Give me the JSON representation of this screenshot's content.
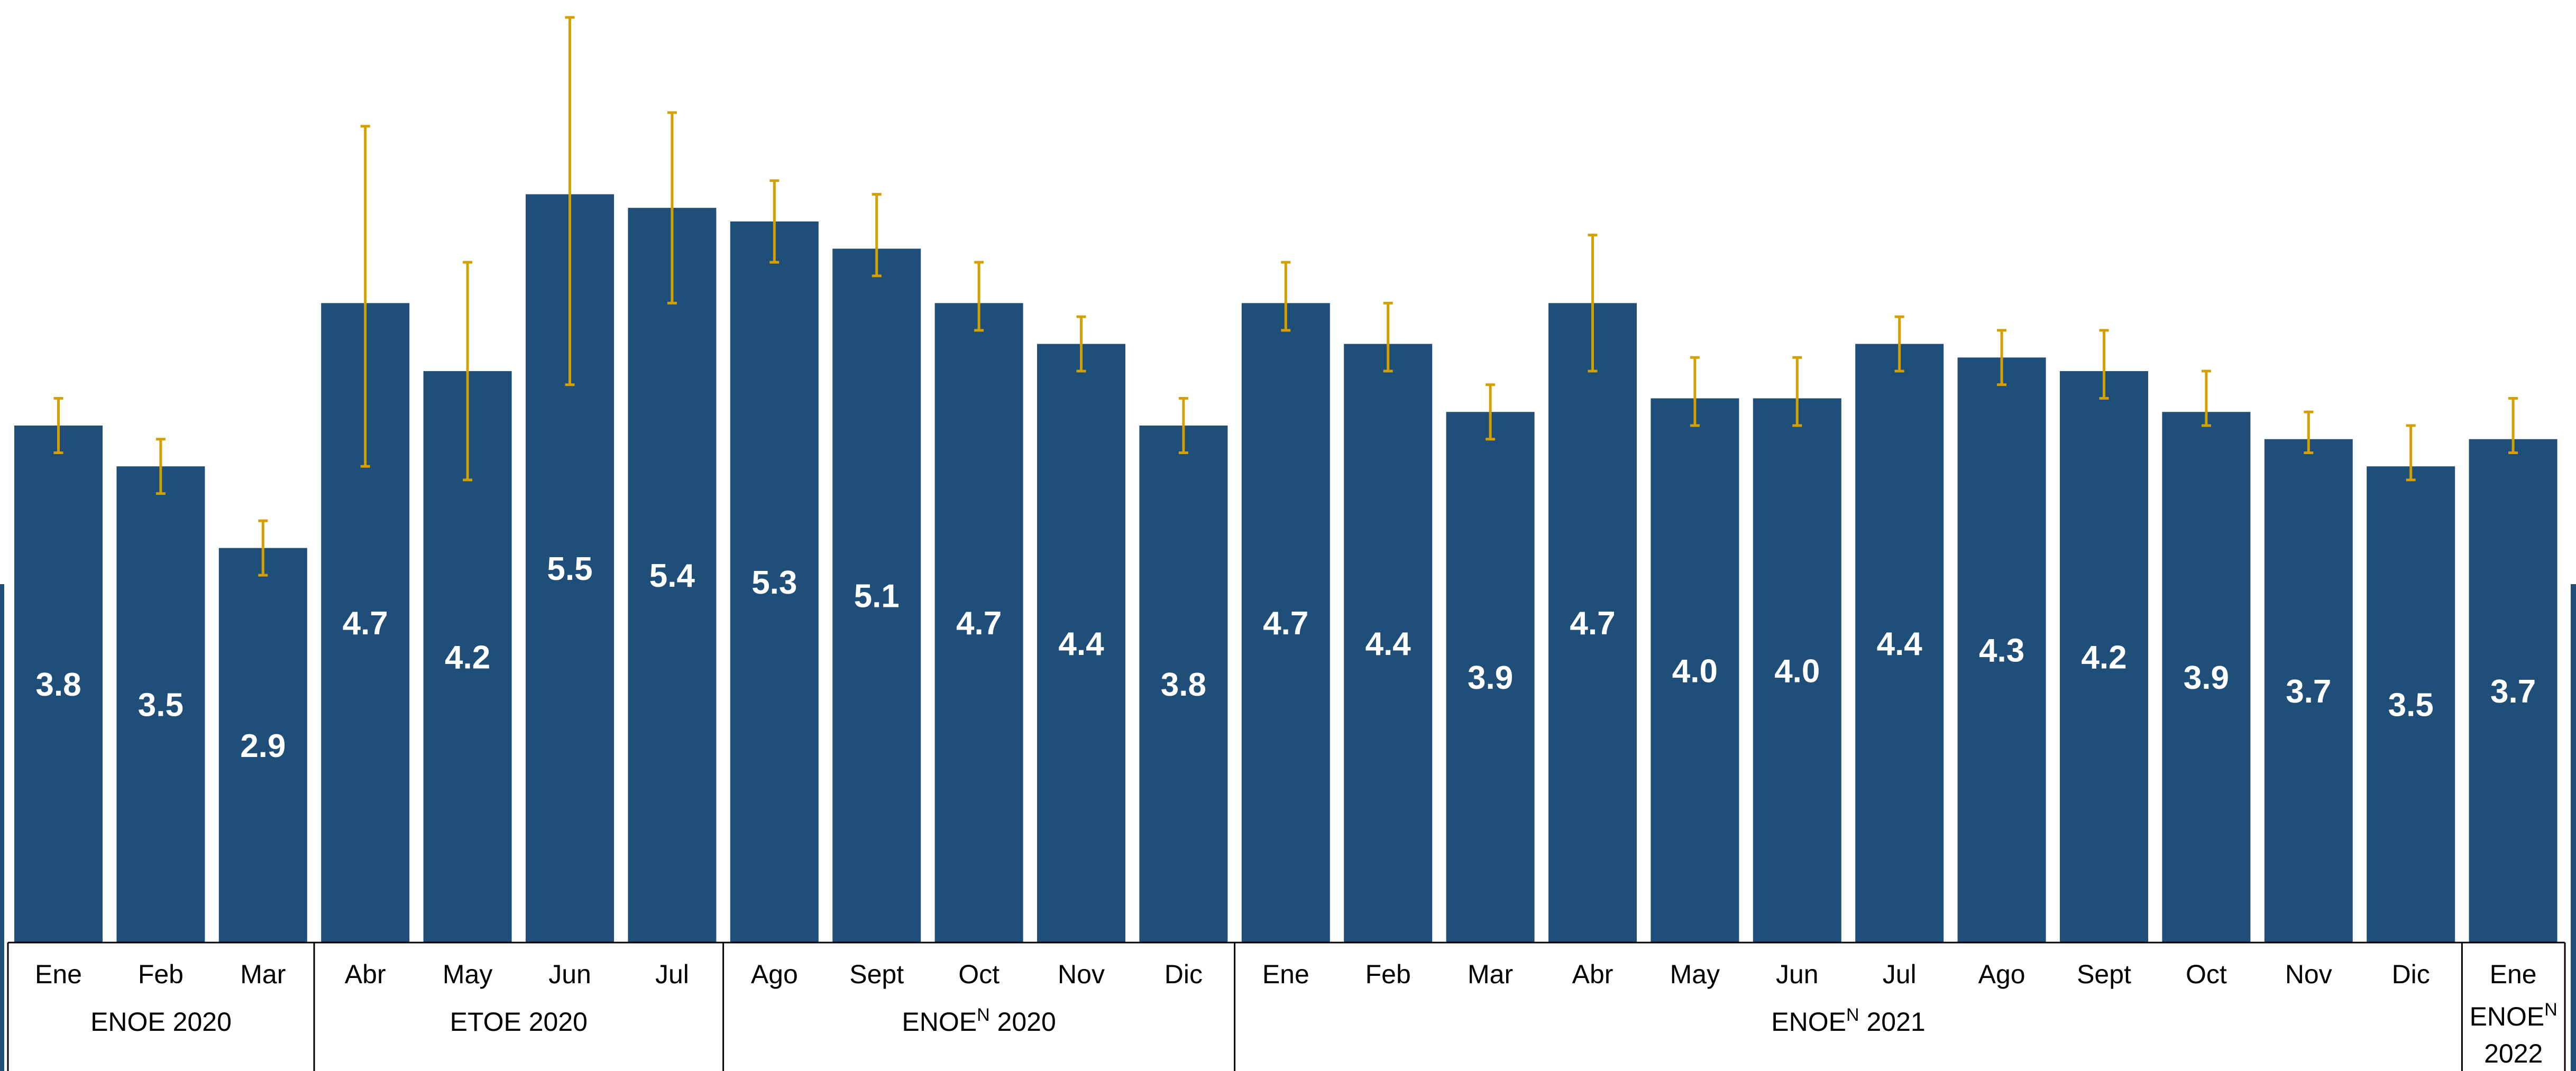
{
  "colors": {
    "bar": "#1f4e79",
    "error": "#d4a000",
    "label": "#ffffff",
    "axis": "#000000",
    "edge": "#1f4e79"
  },
  "chart_data": {
    "type": "bar",
    "categories": [
      "Ene",
      "Feb",
      "Mar",
      "Abr",
      "May",
      "Jun",
      "Jul",
      "Ago",
      "Sept",
      "Oct",
      "Nov",
      "Dic",
      "Ene",
      "Feb",
      "Mar",
      "Abr",
      "May",
      "Jun",
      "Jul",
      "Ago",
      "Sept",
      "Oct",
      "Nov",
      "Dic",
      "Ene"
    ],
    "values": [
      3.8,
      3.5,
      2.9,
      4.7,
      4.2,
      5.5,
      5.4,
      5.3,
      5.1,
      4.7,
      4.4,
      3.8,
      4.7,
      4.4,
      3.9,
      4.7,
      4.0,
      4.0,
      4.4,
      4.3,
      4.2,
      3.9,
      3.7,
      3.5,
      3.7
    ],
    "value_labels": [
      "3.8",
      "3.5",
      "2.9",
      "4.7",
      "4.2",
      "5.5",
      "5.4",
      "5.3",
      "5.1",
      "4.7",
      "4.4",
      "3.8",
      "4.7",
      "4.4",
      "3.9",
      "4.7",
      "4.0",
      "4.0",
      "4.4",
      "4.3",
      "4.2",
      "3.9",
      "3.7",
      "3.5",
      "3.7"
    ],
    "error_low": [
      3.6,
      3.3,
      2.7,
      3.5,
      3.4,
      4.1,
      4.7,
      5.0,
      4.9,
      4.5,
      4.2,
      3.6,
      4.5,
      4.2,
      3.7,
      4.2,
      3.8,
      3.8,
      4.2,
      4.1,
      4.0,
      3.8,
      3.6,
      3.4,
      3.6
    ],
    "error_high": [
      4.0,
      3.7,
      3.1,
      6.0,
      5.0,
      6.8,
      6.1,
      5.6,
      5.5,
      5.0,
      4.6,
      4.0,
      5.0,
      4.7,
      4.1,
      5.2,
      4.3,
      4.3,
      4.6,
      4.5,
      4.5,
      4.2,
      3.9,
      3.8,
      4.0
    ],
    "ylim": [
      0,
      6.85
    ],
    "groups": [
      {
        "base": "ENOE",
        "sup": "",
        "year": "2020",
        "start": 0,
        "end": 2
      },
      {
        "base": "ETOE",
        "sup": "",
        "year": "2020",
        "start": 3,
        "end": 6
      },
      {
        "base": "ENOE",
        "sup": "N",
        "year": "2020",
        "start": 7,
        "end": 11
      },
      {
        "base": "ENOE",
        "sup": "N",
        "year": "2021",
        "start": 12,
        "end": 23
      },
      {
        "base": "ENOE",
        "sup": "N",
        "year": "2022",
        "start": 24,
        "end": 24,
        "stacked": true
      }
    ]
  }
}
